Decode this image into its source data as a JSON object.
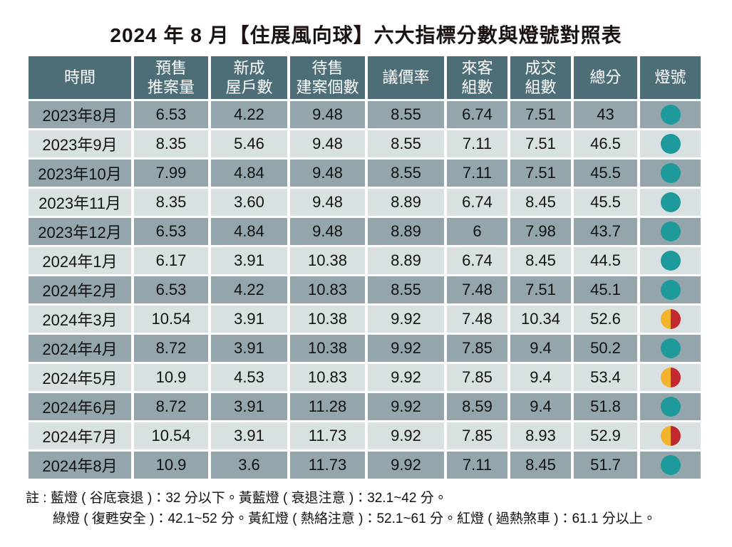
{
  "title": "2024 年 8 月【住展風向球】六大指標分數與燈號對照表",
  "colors": {
    "header_bg": "#4e6e77",
    "row_dark": "#94a5ab",
    "row_light": "#d9e0e2",
    "light_green": "#1e9a9c",
    "light_yellow": "#f2b32d",
    "light_red": "#c2292f"
  },
  "chart_data": {
    "type": "table",
    "title": "2024 年 8 月【住展風向球】六大指標分數與燈號對照表",
    "columns": [
      "時間",
      "預售\n推案量",
      "新成\n屋戶數",
      "待售\n建案個數",
      "議價率",
      "來客\n組數",
      "成交\n組數",
      "總分",
      "燈號"
    ],
    "rows": [
      {
        "period": "2023年8月",
        "values": [
          "6.53",
          "4.22",
          "9.48",
          "8.55",
          "6.74",
          "7.51"
        ],
        "total": "43",
        "light": "green"
      },
      {
        "period": "2023年9月",
        "values": [
          "8.35",
          "5.46",
          "9.48",
          "8.55",
          "7.11",
          "7.51"
        ],
        "total": "46.5",
        "light": "green"
      },
      {
        "period": "2023年10月",
        "values": [
          "7.99",
          "4.84",
          "9.48",
          "8.55",
          "7.11",
          "7.51"
        ],
        "total": "45.5",
        "light": "green"
      },
      {
        "period": "2023年11月",
        "values": [
          "8.35",
          "3.60",
          "9.48",
          "8.89",
          "6.74",
          "8.45"
        ],
        "total": "45.5",
        "light": "green"
      },
      {
        "period": "2023年12月",
        "values": [
          "6.53",
          "4.84",
          "9.48",
          "8.89",
          "6",
          "7.98"
        ],
        "total": "43.7",
        "light": "green"
      },
      {
        "period": "2024年1月",
        "values": [
          "6.17",
          "3.91",
          "10.38",
          "8.89",
          "6.74",
          "8.45"
        ],
        "total": "44.5",
        "light": "green"
      },
      {
        "period": "2024年2月",
        "values": [
          "6.53",
          "4.22",
          "10.83",
          "8.55",
          "7.48",
          "7.51"
        ],
        "total": "45.1",
        "light": "green"
      },
      {
        "period": "2024年3月",
        "values": [
          "10.54",
          "3.91",
          "10.38",
          "9.92",
          "7.48",
          "10.34"
        ],
        "total": "52.6",
        "light": "yellow_red"
      },
      {
        "period": "2024年4月",
        "values": [
          "8.72",
          "3.91",
          "10.38",
          "9.92",
          "7.85",
          "9.4"
        ],
        "total": "50.2",
        "light": "green"
      },
      {
        "period": "2024年5月",
        "values": [
          "10.9",
          "4.53",
          "10.83",
          "9.92",
          "7.85",
          "9.4"
        ],
        "total": "53.4",
        "light": "yellow_red"
      },
      {
        "period": "2024年6月",
        "values": [
          "8.72",
          "3.91",
          "11.28",
          "9.92",
          "8.59",
          "9.4"
        ],
        "total": "51.8",
        "light": "green"
      },
      {
        "period": "2024年7月",
        "values": [
          "10.54",
          "3.91",
          "11.73",
          "9.92",
          "7.85",
          "8.93"
        ],
        "total": "52.9",
        "light": "yellow_red"
      },
      {
        "period": "2024年8月",
        "values": [
          "10.9",
          "3.6",
          "11.73",
          "9.92",
          "7.11",
          "8.45"
        ],
        "total": "51.7",
        "light": "green"
      }
    ]
  },
  "notes": [
    "註 : 藍燈 ( 谷底衰退 )：32 分以下。黃藍燈 ( 衰退注意 )：32.1~42 分。",
    "綠燈 ( 復甦安全 )：42.1~52 分。黃紅燈 ( 熱絡注意 )：52.1~61 分。紅燈 ( 過熱煞車 )：61.1 分以上。"
  ]
}
